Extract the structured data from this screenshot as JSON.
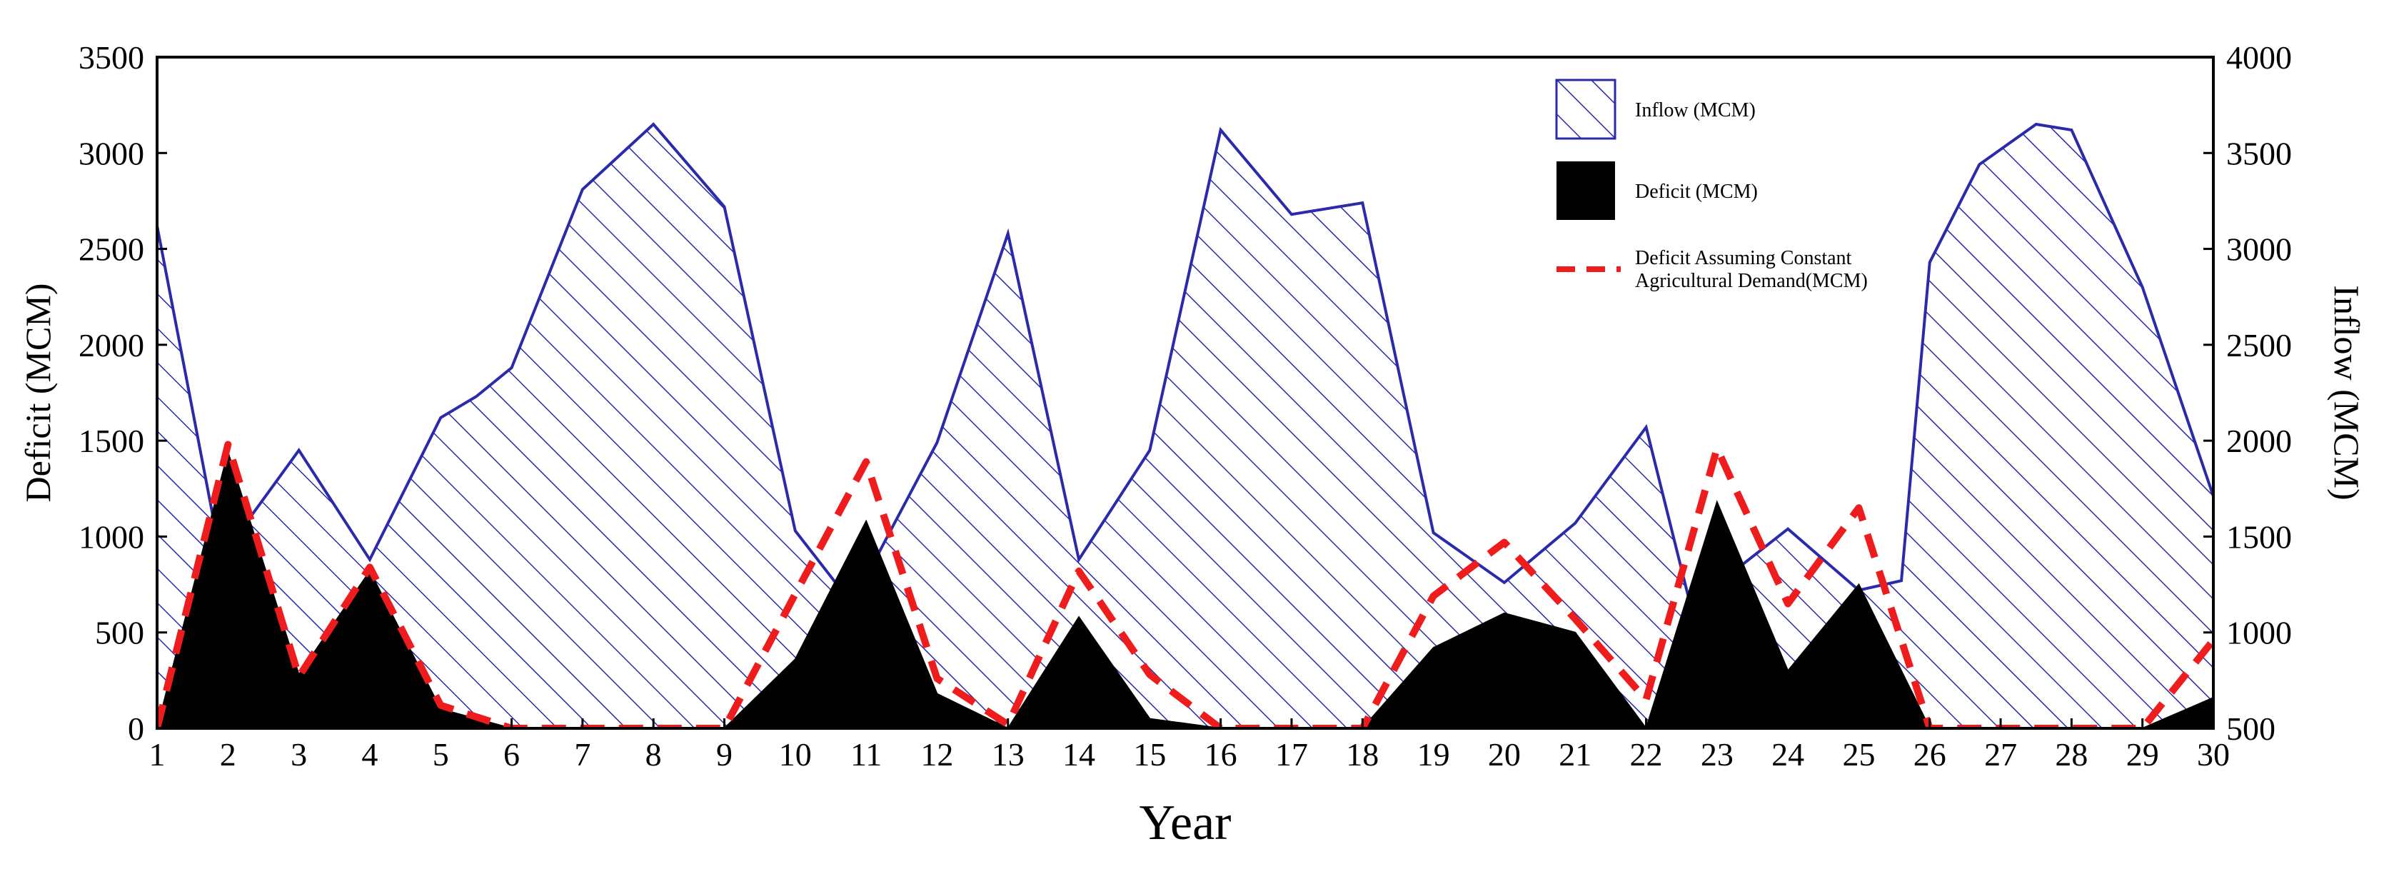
{
  "chart_data": {
    "type": "area",
    "xlabel": "Year",
    "ylabel_left": "Deficit (MCM)",
    "ylabel_right": "Inflow (MCM)",
    "x_ticks": [
      "1",
      "2",
      "3",
      "4",
      "5",
      "6",
      "7",
      "8",
      "9",
      "10",
      "11",
      "12",
      "13",
      "14",
      "15",
      "16",
      "17",
      "18",
      "19",
      "20",
      "21",
      "22",
      "23",
      "24",
      "25",
      "26",
      "27",
      "28",
      "29",
      "30"
    ],
    "y_left_ticks": [
      "0",
      "500",
      "1000",
      "1500",
      "2000",
      "2500",
      "3000",
      "3500"
    ],
    "y_right_ticks": [
      "500",
      "1000",
      "1500",
      "2000",
      "2500",
      "3000",
      "3500",
      "4000"
    ],
    "y_left_lim": [
      0,
      3500
    ],
    "y_right_lim": [
      500,
      4000
    ],
    "x_lim": [
      1,
      30
    ],
    "legend_position": "top-right",
    "colors": {
      "inflow": "#2a2aaa",
      "deficit": "#000000",
      "deficit_constant": "#ee1c1c"
    },
    "series": [
      {
        "name": "Inflow (MCM)",
        "axis": "right",
        "style": "hatched-area",
        "x": [
          1,
          1.9,
          3,
          4,
          5,
          5.5,
          6,
          7,
          8,
          9,
          10,
          10.8,
          12,
          13,
          14,
          15,
          16,
          17,
          18,
          19,
          20,
          21,
          22,
          22.6,
          23,
          24,
          25,
          25.6,
          26,
          26.7,
          27.5,
          28,
          29,
          30
        ],
        "y": [
          3120,
          1390,
          1950,
          1380,
          2120,
          2230,
          2380,
          3310,
          3650,
          3220,
          1530,
          1150,
          1990,
          3080,
          1380,
          1950,
          3620,
          3180,
          3240,
          1520,
          1260,
          1570,
          2070,
          1180,
          1250,
          1540,
          1220,
          1270,
          2930,
          3440,
          3650,
          3620,
          2800,
          1710
        ]
      },
      {
        "name": "Deficit (MCM)",
        "axis": "left",
        "style": "filled-area",
        "x": [
          1,
          2,
          3,
          4,
          5,
          6,
          7,
          8,
          9,
          10,
          11,
          12,
          13,
          14,
          15,
          16,
          17,
          18,
          19,
          20,
          21,
          22,
          23,
          24,
          25,
          26,
          27,
          28,
          29,
          30
        ],
        "y": [
          0,
          1440,
          280,
          820,
          100,
          0,
          0,
          0,
          0,
          360,
          1080,
          180,
          0,
          580,
          50,
          0,
          0,
          0,
          420,
          600,
          500,
          0,
          1180,
          300,
          750,
          0,
          0,
          0,
          0,
          160
        ]
      },
      {
        "name": "Deficit Assuming Constant Agricultural Demand(MCM)",
        "axis": "left",
        "style": "dashed-line",
        "x": [
          1,
          2,
          3,
          4,
          5,
          6,
          7,
          8,
          9,
          10,
          11,
          12,
          13,
          14,
          15,
          16,
          17,
          18,
          19,
          20,
          21,
          22,
          23,
          24,
          25,
          26,
          27,
          28,
          29,
          30
        ],
        "y": [
          0,
          1480,
          270,
          840,
          120,
          0,
          0,
          0,
          0,
          700,
          1390,
          260,
          20,
          820,
          280,
          0,
          0,
          0,
          690,
          970,
          570,
          150,
          1460,
          650,
          1150,
          0,
          0,
          0,
          0,
          460
        ]
      }
    ]
  }
}
